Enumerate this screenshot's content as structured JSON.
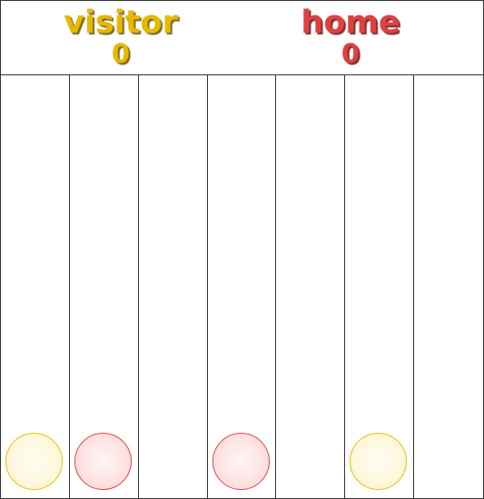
{
  "players": {
    "visitor": {
      "name": "visitor",
      "score": "0",
      "color": "#e6b800",
      "disc": "yellow"
    },
    "home": {
      "name": "home",
      "score": "0",
      "color": "#e04040",
      "disc": "red"
    }
  },
  "board": {
    "columns": 7,
    "rows": 7,
    "discs": [
      {
        "column": 1,
        "row": 1,
        "player": "visitor"
      },
      {
        "column": 2,
        "row": 1,
        "player": "home"
      },
      {
        "column": 4,
        "row": 1,
        "player": "home"
      },
      {
        "column": 6,
        "row": 1,
        "player": "visitor"
      }
    ]
  }
}
